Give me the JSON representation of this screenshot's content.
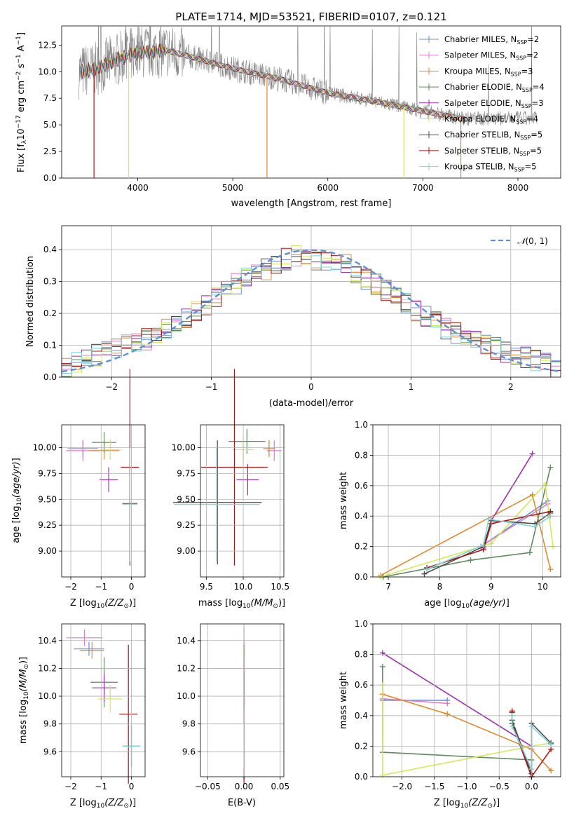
{
  "chart_data": [
    {
      "type": "line",
      "title": "PLATE=1714, MJD=53521, FIBERID=0107, z=0.121",
      "xlabel": "wavelength [Angstrom, rest frame]",
      "ylabel_main": "Flux [f",
      "ylabel_sub1": "λ",
      "ylabel_mid": "10",
      "ylabel_sup1": "−17",
      "ylabel_rest": " erg cm",
      "ylabel_sup2": "−2",
      "ylabel_s": " s",
      "ylabel_sup3": "−1",
      "ylabel_a": " A",
      "ylabel_sup4": "−1",
      "ylabel_end": "]",
      "xlim": [
        3200,
        8450
      ],
      "ylim": [
        0,
        14.3
      ],
      "xticks": [
        "4000",
        "5000",
        "6000",
        "7000",
        "8000"
      ],
      "xtick_values": [
        4000,
        5000,
        6000,
        7000,
        8000
      ],
      "yticks": [
        "0.0",
        "2.5",
        "5.0",
        "7.5",
        "10.0",
        "12.5"
      ],
      "ytick_values": [
        0,
        2.5,
        5,
        7.5,
        10,
        12.5
      ],
      "observed_color": "#808080",
      "legend": [
        {
          "name": "Chabrier MILES, N",
          "sub": "SSP",
          "suffix": "=2",
          "color": "#6b8ed6"
        },
        {
          "name": "Salpeter MILES, N",
          "sub": "SSP",
          "suffix": "=2",
          "color": "#e07fc0"
        },
        {
          "name": "Kroupa MILES, N",
          "sub": "SSP",
          "suffix": "=3",
          "color": "#e08a2e"
        },
        {
          "name": "Chabrier ELODIE, N",
          "sub": "SSP",
          "suffix": "=4",
          "color": "#5e8a5e"
        },
        {
          "name": "Salpeter ELODIE, N",
          "sub": "SSP",
          "suffix": "=3",
          "color": "#9b2fae"
        },
        {
          "name": "Kroupa ELODIE, N",
          "sub": "SSP",
          "suffix": "=4",
          "color": "#d4ea55"
        },
        {
          "name": "Chabrier STELIB, N",
          "sub": "SSP",
          "suffix": "=5",
          "color": "#4a4a4a"
        },
        {
          "name": "Salpeter STELIB, N",
          "sub": "SSP",
          "suffix": "=5",
          "color": "#a81818"
        },
        {
          "name": "Kroupa STELIB, N",
          "sub": "SSP",
          "suffix": "=5",
          "color": "#7fd4d8"
        }
      ],
      "model_continuum": {
        "x": [
          3400,
          3550,
          3800,
          4000,
          4300,
          4600,
          5000,
          5500,
          6000,
          6500,
          7000,
          7400
        ],
        "y": [
          10.0,
          10.2,
          11.2,
          11.8,
          12.0,
          11.3,
          10.3,
          9.3,
          8.0,
          7.2,
          6.3,
          5.6
        ]
      },
      "drops": [
        {
          "x": 3540,
          "color": "#a81818"
        },
        {
          "x": 3905,
          "color": "#d4ea55"
        },
        {
          "x": 5360,
          "color": "#e08a2e"
        },
        {
          "x": 6800,
          "color": "#d4ea55"
        },
        {
          "x": 7400,
          "color": "#e08a2e"
        }
      ]
    },
    {
      "type": "histogram",
      "xlabel": "(data-model)/error",
      "ylabel": "Normed distribution",
      "xlim": [
        -2.5,
        2.5
      ],
      "ylim": [
        0,
        0.475
      ],
      "xticks": [
        "−2",
        "−1",
        "0",
        "1",
        "2"
      ],
      "xtick_values": [
        -2,
        -1,
        0,
        1,
        2
      ],
      "yticks": [
        "0.0",
        "0.1",
        "0.2",
        "0.3",
        "0.4"
      ],
      "ytick_values": [
        0,
        0.1,
        0.2,
        0.3,
        0.4
      ],
      "legend_label_prefix": "𝒩",
      "legend_label_suffix": "(0, 1)",
      "normal_color": "#5b8fd6",
      "bin_width": 0.1,
      "bin_start": -2.5,
      "mean_bins": [
        0.03,
        0.05,
        0.06,
        0.07,
        0.08,
        0.09,
        0.1,
        0.11,
        0.12,
        0.13,
        0.15,
        0.17,
        0.19,
        0.21,
        0.23,
        0.25,
        0.27,
        0.29,
        0.31,
        0.33,
        0.34,
        0.36,
        0.37,
        0.38,
        0.37,
        0.37,
        0.37,
        0.36,
        0.35,
        0.33,
        0.31,
        0.29,
        0.27,
        0.25,
        0.23,
        0.21,
        0.19,
        0.17,
        0.15,
        0.14,
        0.13,
        0.12,
        0.1,
        0.09,
        0.08,
        0.07,
        0.06,
        0.05,
        0.04,
        0.03
      ]
    },
    {
      "type": "scatter",
      "xlabel": "Z [log",
      "xlabel_sub": "10",
      "xlabel_end": "(Z/Z",
      "xlabel_sun": "⊙",
      "xlabel_close": ")]",
      "ylabel_plain": "age  [log",
      "ylabel_sub": "10",
      "ylabel_it": "(age/yr)",
      "ylabel_close": "]",
      "xlim": [
        -2.3,
        0.45
      ],
      "ylim": [
        8.75,
        10.22
      ],
      "xticks": [
        "−2",
        "−1",
        "0"
      ],
      "xtick_values": [
        -2,
        -1,
        0
      ],
      "yticks": [
        "9.00",
        "9.25",
        "9.50",
        "9.75",
        "10.00"
      ],
      "ytick_values": [
        9.0,
        9.25,
        9.5,
        9.75,
        10.0
      ],
      "points": [
        {
          "x": -1.6,
          "y": 9.99,
          "xerr": 0.5,
          "yerr": 0.08,
          "color": "#6b8ed6"
        },
        {
          "x": -1.6,
          "y": 9.97,
          "xerr": 0.55,
          "yerr": 0.1,
          "color": "#e07fc0"
        },
        {
          "x": -0.9,
          "y": 9.97,
          "xerr": 0.5,
          "yerr": 0.08,
          "color": "#e08a2e"
        },
        {
          "x": -0.9,
          "y": 10.05,
          "xerr": 0.4,
          "yerr": 0.1,
          "color": "#5e8a5e"
        },
        {
          "x": -0.75,
          "y": 9.69,
          "xerr": 0.3,
          "yerr": 0.12,
          "color": "#9b2fae"
        },
        {
          "x": -0.7,
          "y": 9.98,
          "xerr": 0.35,
          "yerr": 0.1,
          "color": "#d4ea55"
        },
        {
          "x": -0.05,
          "y": 9.46,
          "xerr": 0.25,
          "yerr": 0.55,
          "color": "#4a4a4a"
        },
        {
          "x": -0.05,
          "y": 9.81,
          "xerr": 0.3,
          "yerr": 0.95,
          "color": "#a81818"
        },
        {
          "x": -0.05,
          "y": 9.45,
          "xerr": 0.25,
          "yerr": 0.55,
          "color": "#7fd4d8"
        }
      ]
    },
    {
      "type": "scatter",
      "xlabel": "mass [log",
      "xlabel_sub": "10",
      "xlabel_end": "(M/M",
      "xlabel_sun": "⊙",
      "xlabel_close": ")]",
      "xlim": [
        9.42,
        10.55
      ],
      "ylim": [
        8.75,
        10.22
      ],
      "xticks": [
        "9.5",
        "10.0",
        "10.5"
      ],
      "xtick_values": [
        9.5,
        10.0,
        10.5
      ],
      "yticks": [
        "9.00",
        "9.25",
        "9.50",
        "9.75",
        "10.00"
      ],
      "ytick_values": [
        9.0,
        9.25,
        9.5,
        9.75,
        10.0
      ],
      "points": [
        {
          "x": 10.35,
          "y": 9.99,
          "xerr": 0.08,
          "yerr": 0.08,
          "color": "#6b8ed6"
        },
        {
          "x": 10.42,
          "y": 9.97,
          "xerr": 0.1,
          "yerr": 0.1,
          "color": "#e07fc0"
        },
        {
          "x": 10.35,
          "y": 9.99,
          "xerr": 0.08,
          "yerr": 0.08,
          "color": "#e08a2e"
        },
        {
          "x": 10.05,
          "y": 10.06,
          "xerr": 0.25,
          "yerr": 0.12,
          "color": "#5e8a5e"
        },
        {
          "x": 10.06,
          "y": 9.69,
          "xerr": 0.15,
          "yerr": 0.15,
          "color": "#9b2fae"
        },
        {
          "x": 10.0,
          "y": 9.98,
          "xerr": 0.15,
          "yerr": 0.12,
          "color": "#d4ea55"
        },
        {
          "x": 9.65,
          "y": 9.47,
          "xerr": 0.6,
          "yerr": 0.6,
          "color": "#4a4a4a"
        },
        {
          "x": 9.88,
          "y": 9.81,
          "xerr": 0.45,
          "yerr": 0.95,
          "color": "#a81818"
        },
        {
          "x": 9.64,
          "y": 9.45,
          "xerr": 0.58,
          "yerr": 0.55,
          "color": "#7fd4d8"
        }
      ]
    },
    {
      "type": "line",
      "xlabel_plain": "age  [log",
      "xlabel_sub": "10",
      "xlabel_it": "(age/yr)",
      "xlabel_close": "]",
      "ylabel": "mass weight",
      "xlim": [
        6.7,
        10.35
      ],
      "ylim": [
        0,
        1.0
      ],
      "xticks": [
        "7",
        "8",
        "9",
        "10"
      ],
      "xtick_values": [
        7,
        8,
        9,
        10
      ],
      "yticks": [
        "0.0",
        "0.2",
        "0.4",
        "0.6",
        "0.8",
        "1.0"
      ],
      "ytick_values": [
        0,
        0.2,
        0.4,
        0.6,
        0.8,
        1.0
      ],
      "series": [
        {
          "color": "#6b8ed6",
          "x": [
            8.8,
            10.1
          ],
          "y": [
            0.2,
            0.5
          ]
        },
        {
          "color": "#e07fc0",
          "x": [
            8.8,
            10.1
          ],
          "y": [
            0.2,
            0.48
          ]
        },
        {
          "color": "#e08a2e",
          "x": [
            6.85,
            9.8,
            10.15
          ],
          "y": [
            0.01,
            0.54,
            0.05
          ]
        },
        {
          "color": "#5e8a5e",
          "x": [
            6.9,
            8.6,
            9.75,
            10.15
          ],
          "y": [
            0.0,
            0.11,
            0.16,
            0.72
          ]
        },
        {
          "color": "#9b2fae",
          "x": [
            8.85,
            9.0,
            9.8
          ],
          "y": [
            0.19,
            0.37,
            0.81
          ]
        },
        {
          "color": "#d4ea55",
          "x": [
            6.85,
            9.0,
            10.05,
            10.2
          ],
          "y": [
            0.0,
            0.22,
            0.61,
            0.2
          ]
        },
        {
          "color": "#4a4a4a",
          "x": [
            7.7,
            8.85,
            9.0,
            9.85,
            10.15
          ],
          "y": [
            0.02,
            0.2,
            0.37,
            0.35,
            0.42
          ]
        },
        {
          "color": "#a81818",
          "x": [
            7.75,
            8.85,
            9.0,
            10.15
          ],
          "y": [
            0.06,
            0.18,
            0.35,
            0.43
          ]
        },
        {
          "color": "#7fd4d8",
          "x": [
            7.75,
            8.85,
            8.95,
            9.85,
            10.15
          ],
          "y": [
            0.05,
            0.21,
            0.38,
            0.33,
            0.4
          ]
        }
      ]
    },
    {
      "type": "scatter",
      "xlabel": "Z [log",
      "xlabel_sub": "10",
      "xlabel_end": "(Z/Z",
      "xlabel_sun": "⊙",
      "xlabel_close": ")]",
      "ylabel": "mass [log",
      "ylabel_sub": "10",
      "ylabel_end": "(M/M",
      "ylabel_sun": "⊙",
      "ylabel_close": ")]",
      "xlim": [
        -2.3,
        0.45
      ],
      "ylim": [
        9.42,
        10.52
      ],
      "xticks": [
        "−2",
        "−1",
        "0"
      ],
      "xtick_values": [
        -2,
        -1,
        0
      ],
      "yticks": [
        "9.6",
        "9.8",
        "10.0",
        "10.2",
        "10.4"
      ],
      "ytick_values": [
        9.6,
        9.8,
        10.0,
        10.2,
        10.4
      ],
      "points": [
        {
          "x": -1.4,
          "y": 10.34,
          "xerr": 0.5,
          "yerr": 0.05,
          "color": "#6b8ed6"
        },
        {
          "x": -1.55,
          "y": 10.42,
          "xerr": 0.6,
          "yerr": 0.06,
          "color": "#e07fc0"
        },
        {
          "x": -1.3,
          "y": 10.33,
          "xerr": 0.4,
          "yerr": 0.06,
          "color": "#e08a2e"
        },
        {
          "x": -0.9,
          "y": 10.1,
          "xerr": 0.45,
          "yerr": 0.18,
          "color": "#5e8a5e"
        },
        {
          "x": -0.9,
          "y": 10.06,
          "xerr": 0.4,
          "yerr": 0.1,
          "color": "#9b2fae"
        },
        {
          "x": -0.7,
          "y": 9.98,
          "xerr": 0.4,
          "yerr": 0.1,
          "color": "#d4ea55"
        },
        {
          "x": 0.0,
          "y": 9.64,
          "xerr": 0.3,
          "yerr": 0.15,
          "color": "#4a4a4a"
        },
        {
          "x": -0.1,
          "y": 9.87,
          "xerr": 0.3,
          "yerr": 0.5,
          "color": "#a81818"
        },
        {
          "x": 0.0,
          "y": 9.64,
          "xerr": 0.3,
          "yerr": 0.15,
          "color": "#7fd4d8"
        }
      ]
    },
    {
      "type": "scatter",
      "xlabel": "E(B-V)",
      "xlim": [
        -0.06,
        0.055
      ],
      "ylim": [
        9.42,
        10.52
      ],
      "xticks": [
        "−0.05",
        "0.00",
        "0.05"
      ],
      "xtick_values": [
        -0.05,
        0.0,
        0.05
      ],
      "yticks": [
        "9.6",
        "9.8",
        "10.0",
        "10.2",
        "10.4"
      ],
      "ytick_values": [
        9.6,
        9.8,
        10.0,
        10.2,
        10.4
      ],
      "points": [
        {
          "x": 0.0,
          "y": 10.34,
          "yerr": 0.06,
          "color": "#6b8ed6"
        },
        {
          "x": 0.0,
          "y": 10.42,
          "yerr": 0.08,
          "color": "#e07fc0"
        },
        {
          "x": 0.0,
          "y": 10.33,
          "yerr": 0.06,
          "color": "#e08a2e"
        },
        {
          "x": 0.0,
          "y": 10.1,
          "yerr": 0.2,
          "color": "#5e8a5e"
        },
        {
          "x": 0.0,
          "y": 10.06,
          "yerr": 0.12,
          "color": "#9b2fae"
        },
        {
          "x": 0.0,
          "y": 9.98,
          "yerr": 0.1,
          "color": "#d4ea55"
        },
        {
          "x": 0.0,
          "y": 9.64,
          "yerr": 0.16,
          "color": "#4a4a4a"
        },
        {
          "x": 0.0,
          "y": 9.87,
          "yerr": 0.5,
          "color": "#a81818"
        },
        {
          "x": 0.0,
          "y": 9.64,
          "yerr": 0.16,
          "color": "#7fd4d8"
        }
      ]
    },
    {
      "type": "line",
      "xlabel": "Z [log",
      "xlabel_sub": "10",
      "xlabel_end": "(Z/Z",
      "xlabel_sun": "⊙",
      "xlabel_close": ")]",
      "ylabel": "mass weight",
      "xlim": [
        -2.45,
        0.45
      ],
      "ylim": [
        0,
        1.0
      ],
      "xticks": [
        "−2.0",
        "−1.5",
        "−1.0",
        "−0.5",
        "0.0"
      ],
      "xtick_values": [
        -2.0,
        -1.5,
        -1.0,
        -0.5,
        0.0
      ],
      "yticks": [
        "0.0",
        "0.2",
        "0.4",
        "0.6",
        "0.8",
        "1.0"
      ],
      "ytick_values": [
        0,
        0.2,
        0.4,
        0.6,
        0.8,
        1.0
      ],
      "series": [
        {
          "color": "#6b8ed6",
          "x": [
            -2.3,
            -1.3
          ],
          "y": [
            0.5,
            0.5
          ]
        },
        {
          "color": "#e07fc0",
          "x": [
            -2.3,
            -1.3
          ],
          "y": [
            0.51,
            0.48
          ]
        },
        {
          "color": "#e08a2e",
          "x": [
            -2.3,
            -1.3,
            0.0,
            0.3
          ],
          "y": [
            0.54,
            0.41,
            0.18,
            0.04
          ]
        },
        {
          "color": "#5e8a5e",
          "x": [
            -2.3,
            -2.3,
            0.0,
            0.0
          ],
          "y": [
            0.72,
            0.16,
            0.11,
            0.0
          ]
        },
        {
          "color": "#9b2fae",
          "x": [
            -2.3,
            0.0
          ],
          "y": [
            0.81,
            0.2
          ]
        },
        {
          "color": "#d4ea55",
          "x": [
            -2.3,
            -2.3,
            0.0,
            0.3
          ],
          "y": [
            0.6,
            0.01,
            0.2,
            0.22
          ]
        },
        {
          "color": "#4a4a4a",
          "x": [
            -0.3,
            -0.3,
            0.0,
            0.0,
            0.3
          ],
          "y": [
            0.42,
            0.37,
            0.02,
            0.35,
            0.22
          ]
        },
        {
          "color": "#a81818",
          "x": [
            -0.3,
            -0.3,
            0.0,
            0.3
          ],
          "y": [
            0.43,
            0.35,
            0.0,
            0.18
          ]
        },
        {
          "color": "#7fd4d8",
          "x": [
            -0.3,
            -0.3,
            0.0,
            0.0,
            0.3
          ],
          "y": [
            0.4,
            0.33,
            0.05,
            0.33,
            0.21
          ]
        }
      ]
    }
  ]
}
